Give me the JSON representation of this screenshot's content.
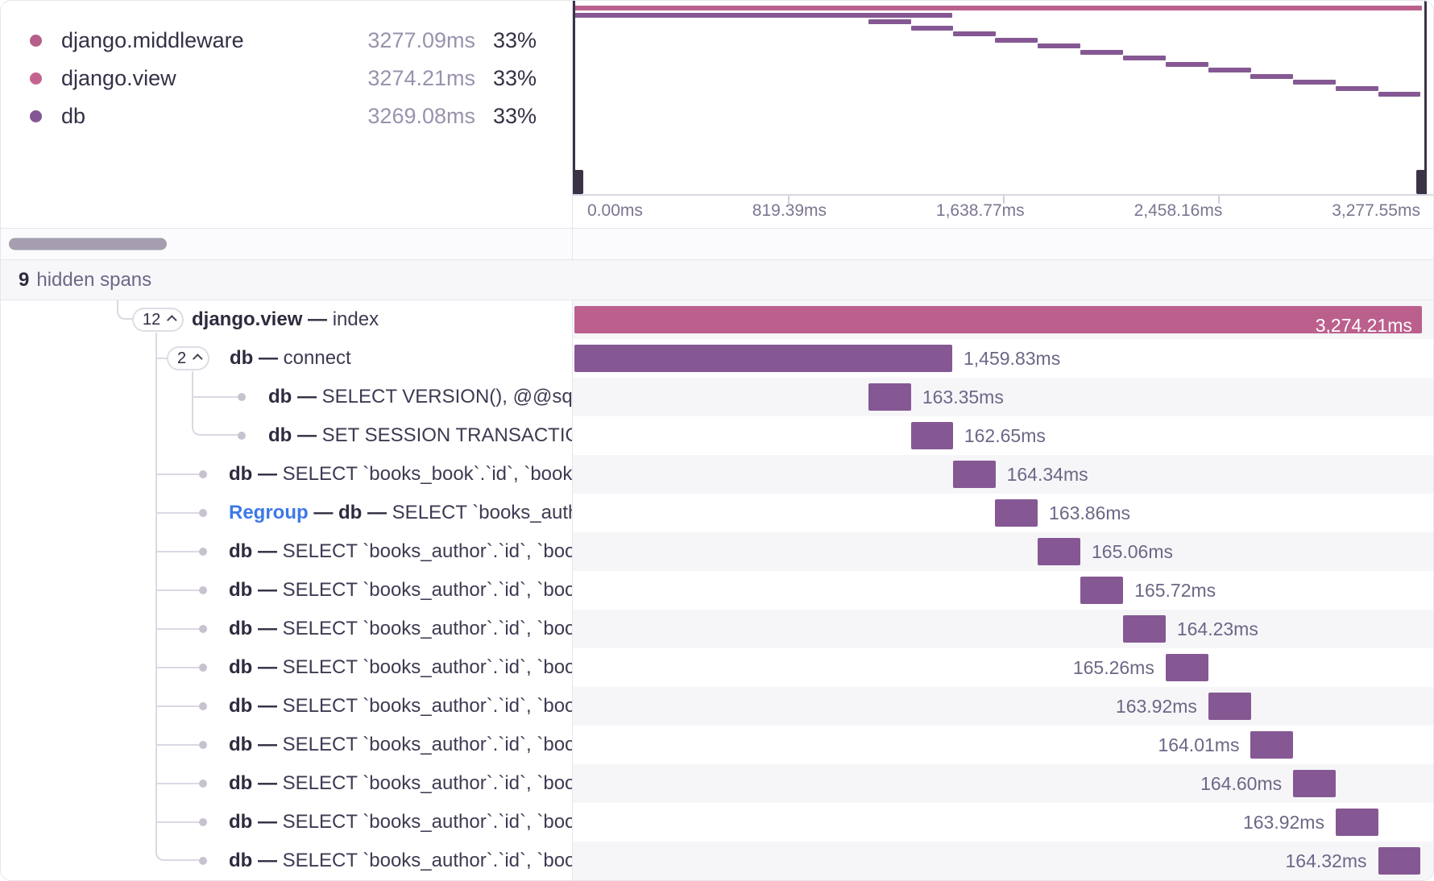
{
  "colors": {
    "pink": "#bb608d",
    "purple": "#855893",
    "middleware_dot": "#b55f8a",
    "view_dot": "#c4648e",
    "db_dot": "#845694"
  },
  "legend": {
    "items": [
      {
        "name": "django.middleware",
        "time": "3277.09ms",
        "percent": "33%",
        "color": "#b55f8a"
      },
      {
        "name": "django.view",
        "time": "3274.21ms",
        "percent": "33%",
        "color": "#c4648e"
      },
      {
        "name": "db",
        "time": "3269.08ms",
        "percent": "33%",
        "color": "#845694"
      }
    ]
  },
  "minimap": {
    "axis_labels": [
      "0.00ms",
      "819.39ms",
      "1,638.77ms",
      "2,458.16ms",
      "3,277.55ms"
    ]
  },
  "hidden_spans": {
    "count": "9",
    "label": "hidden spans"
  },
  "trace": {
    "rows": [
      {
        "badge": "12",
        "tree": "root",
        "parts": [
          {
            "text": "django.view — ",
            "style": "bold"
          },
          {
            "text": "index",
            "style": "plain"
          }
        ],
        "time": "3,274.21ms",
        "color": "pink",
        "left_pct": 0,
        "width_pct": 99.9,
        "label_side": "inside"
      },
      {
        "badge": "2",
        "tree": "branch",
        "parts": [
          {
            "text": "db — ",
            "style": "bold"
          },
          {
            "text": "connect",
            "style": "plain"
          }
        ],
        "time": "1,459.83ms",
        "color": "purple",
        "left_pct": 0,
        "width_pct": 44.54,
        "label_side": "right"
      },
      {
        "tree": "deep",
        "parts": [
          {
            "text": "db — ",
            "style": "bold"
          },
          {
            "text": "SELECT VERSION(), @@sql_mode",
            "style": "plain"
          }
        ],
        "time": "163.35ms",
        "color": "purple",
        "left_pct": 34.7,
        "width_pct": 4.98,
        "label_side": "right"
      },
      {
        "tree": "deep-last",
        "parts": [
          {
            "text": "db — ",
            "style": "bold"
          },
          {
            "text": "SET SESSION TRANSACTION ISOLATION",
            "style": "plain"
          }
        ],
        "time": "162.65ms",
        "color": "purple",
        "left_pct": 39.66,
        "width_pct": 4.96,
        "label_side": "right"
      },
      {
        "tree": "leaf",
        "parts": [
          {
            "text": "db — ",
            "style": "bold"
          },
          {
            "text": "SELECT `books_book`.`id`, `books_",
            "style": "plain"
          }
        ],
        "time": "164.34ms",
        "color": "purple",
        "left_pct": 44.62,
        "width_pct": 5.01,
        "label_side": "right"
      },
      {
        "tree": "leaf",
        "parts": [
          {
            "text": "Regroup",
            "style": "link"
          },
          {
            "text": " — db — ",
            "style": "bold"
          },
          {
            "text": "SELECT `books_autho",
            "style": "plain"
          }
        ],
        "time": "163.86ms",
        "color": "purple",
        "left_pct": 49.61,
        "width_pct": 5.0,
        "label_side": "right"
      },
      {
        "tree": "leaf",
        "parts": [
          {
            "text": "db — ",
            "style": "bold"
          },
          {
            "text": "SELECT `books_author`.`id`, `boo",
            "style": "plain"
          }
        ],
        "time": "165.06ms",
        "color": "purple",
        "left_pct": 54.6,
        "width_pct": 5.04,
        "label_side": "right"
      },
      {
        "tree": "leaf",
        "parts": [
          {
            "text": "db — ",
            "style": "bold"
          },
          {
            "text": "SELECT `books_author`.`id`, `boo",
            "style": "plain"
          }
        ],
        "time": "165.72ms",
        "color": "purple",
        "left_pct": 59.63,
        "width_pct": 5.06,
        "label_side": "right"
      },
      {
        "tree": "leaf",
        "parts": [
          {
            "text": "db — ",
            "style": "bold"
          },
          {
            "text": "SELECT `books_author`.`id`, `boo",
            "style": "plain"
          }
        ],
        "time": "164.23ms",
        "color": "purple",
        "left_pct": 64.68,
        "width_pct": 5.01,
        "label_side": "right"
      },
      {
        "tree": "leaf",
        "parts": [
          {
            "text": "db — ",
            "style": "bold"
          },
          {
            "text": "SELECT `books_author`.`id`, `boo",
            "style": "plain"
          }
        ],
        "time": "165.26ms",
        "color": "purple",
        "left_pct": 69.69,
        "width_pct": 5.04,
        "label_side": "left"
      },
      {
        "tree": "leaf",
        "parts": [
          {
            "text": "db — ",
            "style": "bold"
          },
          {
            "text": "SELECT `books_author`.`id`, `boo",
            "style": "plain"
          }
        ],
        "time": "163.92ms",
        "color": "purple",
        "left_pct": 74.73,
        "width_pct": 5.0,
        "label_side": "left"
      },
      {
        "tree": "leaf",
        "parts": [
          {
            "text": "db — ",
            "style": "bold"
          },
          {
            "text": "SELECT `books_author`.`id`, `boo",
            "style": "plain"
          }
        ],
        "time": "164.01ms",
        "color": "purple",
        "left_pct": 79.72,
        "width_pct": 5.0,
        "label_side": "left"
      },
      {
        "tree": "leaf",
        "parts": [
          {
            "text": "db — ",
            "style": "bold"
          },
          {
            "text": "SELECT `books_author`.`id`, `boo",
            "style": "plain"
          }
        ],
        "time": "164.60ms",
        "color": "purple",
        "left_pct": 84.72,
        "width_pct": 5.02,
        "label_side": "left"
      },
      {
        "tree": "leaf",
        "parts": [
          {
            "text": "db — ",
            "style": "bold"
          },
          {
            "text": "SELECT `books_author`.`id`, `boo",
            "style": "plain"
          }
        ],
        "time": "163.92ms",
        "color": "purple",
        "left_pct": 89.74,
        "width_pct": 5.0,
        "label_side": "left"
      },
      {
        "tree": "leaf-last",
        "parts": [
          {
            "text": "db — ",
            "style": "bold"
          },
          {
            "text": "SELECT `books_author`.`id`, `boo",
            "style": "plain"
          }
        ],
        "time": "164.32ms",
        "color": "purple",
        "left_pct": 94.73,
        "width_pct": 5.01,
        "label_side": "left"
      }
    ]
  }
}
